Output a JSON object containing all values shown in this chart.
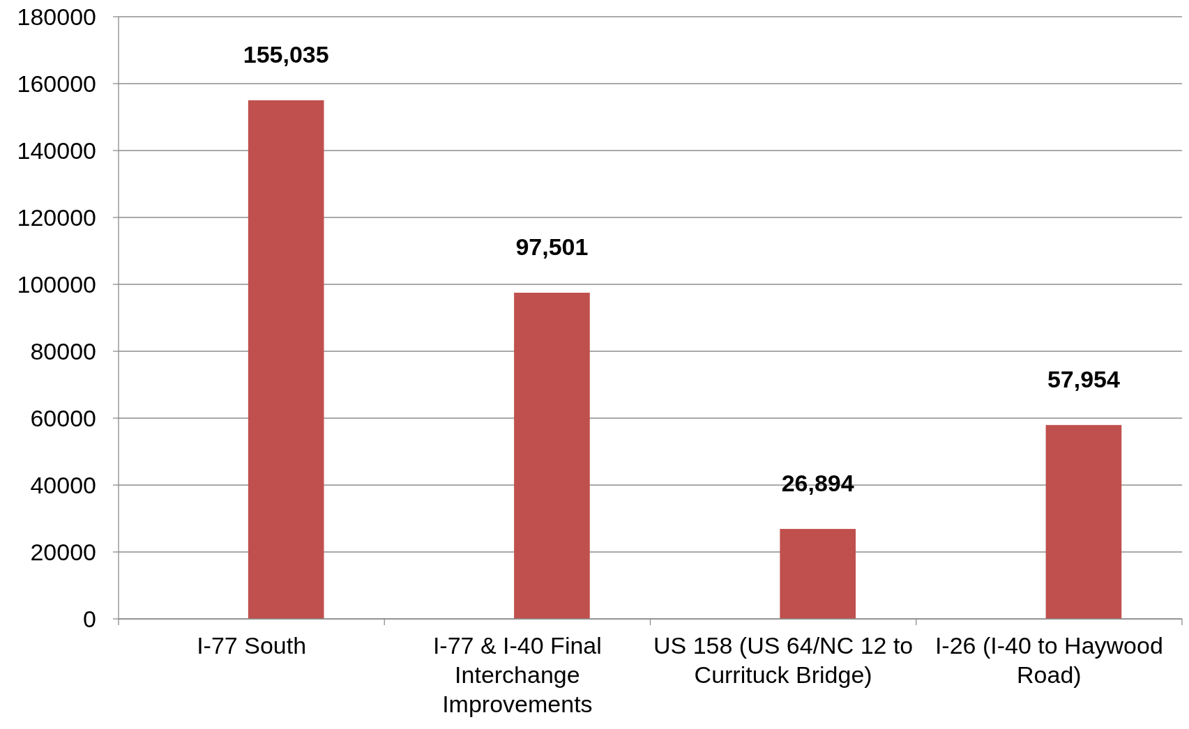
{
  "chart_data": {
    "type": "bar",
    "categories": [
      "I-77 South",
      "I-77 & I-40 Final Interchange Improvements",
      "US 158 (US 64/NC 12 to Currituck Bridge)",
      "I-26 (I-40 to Haywood Road)"
    ],
    "values": [
      155035,
      97501,
      26894,
      57954
    ],
    "value_labels": [
      "155,035",
      "97,501",
      "26,894",
      "57,954"
    ],
    "color": "#c0504d",
    "ylim": [
      0,
      180000
    ],
    "yticks": [
      0,
      20000,
      40000,
      60000,
      80000,
      100000,
      120000,
      140000,
      160000,
      180000
    ],
    "grid": "y"
  }
}
